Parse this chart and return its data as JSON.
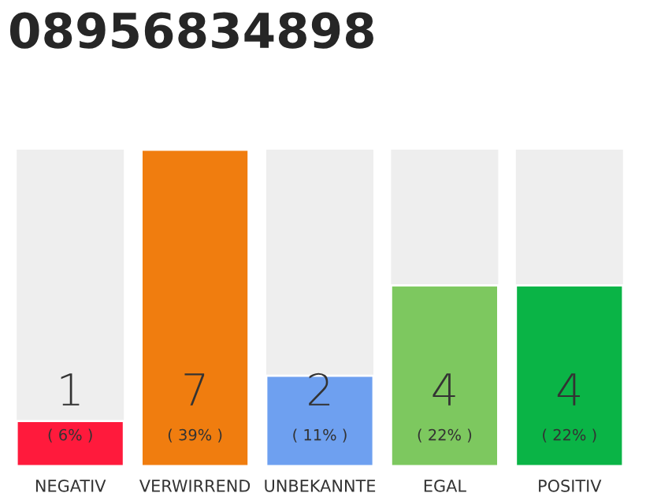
{
  "chart_data": {
    "type": "bar",
    "title": "08956834898",
    "categories": [
      "NEGATIV",
      "VERWIRREND",
      "UNBEKANNTE",
      "EGAL",
      "POSITIV"
    ],
    "values": [
      1,
      7,
      2,
      4,
      4
    ],
    "colors": [
      "#ff1a3c",
      "#f07d0f",
      "#6ea0f0",
      "#7dc85f",
      "#0ab446"
    ],
    "ylim": [
      0,
      7
    ],
    "data_labels": true,
    "grid": false,
    "legend": false,
    "tick_labels": "x",
    "annotations": [
      "( 6% )",
      "( 39% )",
      "( 11% )",
      "( 22% )",
      "( 22% )"
    ]
  }
}
